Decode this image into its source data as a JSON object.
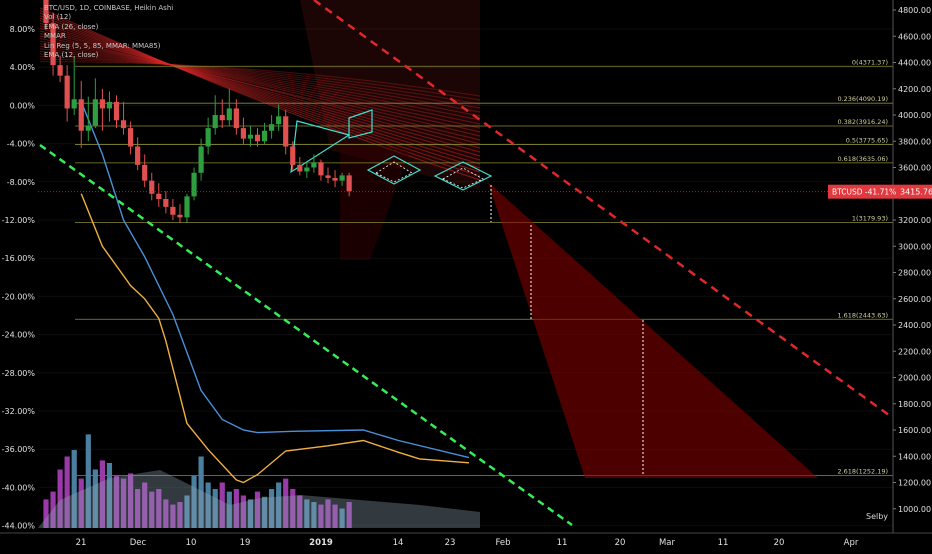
{
  "legend": {
    "title": "BTC/USD, 1D, COINBASE, Heikin Ashi",
    "lines": [
      "Vol (12)",
      "EMA (26, close)",
      "MMAR",
      "Lin Reg (5, 5, 85, MMAR: MMA85)",
      "EMA (12, close)"
    ]
  },
  "footer": {
    "author": "Selby"
  },
  "price_tag": {
    "label": "BTCUSD -41.71%",
    "value": "3415.76",
    "color": "#e0393e"
  },
  "chart_data": {
    "type": "candlestick",
    "right_axis": {
      "ticks": [
        "4800.00",
        "4600.00",
        "4400.00",
        "4200.00",
        "4000.00",
        "3800.00",
        "3600.00",
        "3400.00",
        "3200.00",
        "3000.00",
        "2800.00",
        "2600.00",
        "2400.00",
        "2200.00",
        "2000.00",
        "1800.00",
        "1600.00",
        "1400.00",
        "1200.00",
        "1000.00"
      ],
      "range": [
        900,
        4900
      ]
    },
    "left_axis": {
      "ticks": [
        "8.00%",
        "4.00%",
        "0.00%",
        "-4.00%",
        "-8.00%",
        "-12.00%",
        "-16.00%",
        "-20.00%",
        "-24.00%",
        "-28.00%",
        "-32.00%",
        "-36.00%",
        "-40.00%",
        "-44.00%"
      ]
    },
    "x_axis": {
      "ticks": [
        "21",
        "Dec",
        "10",
        "19",
        "2019",
        "14",
        "23",
        "Feb",
        "11",
        "20",
        "Mar",
        "11",
        "20",
        "Apr"
      ],
      "bold_tick": "2019"
    },
    "fib_levels": [
      {
        "label": "0(4371.37)",
        "price": 4371.37
      },
      {
        "label": "0.236(4090.19)",
        "price": 4090.19
      },
      {
        "label": "0.382(3916.24)",
        "price": 3916.24
      },
      {
        "label": "0.5(3775.65)",
        "price": 3775.65
      },
      {
        "label": "0.618(3635.06)",
        "price": 3635.06
      },
      {
        "label": "1(3179.93)",
        "price": 3179.93
      },
      {
        "label": "1.618(2443.63)",
        "price": 2443.63
      },
      {
        "label": "2.618(1252.19)",
        "price": 1252.19
      }
    ],
    "colors": {
      "up": "#2e9e3f",
      "down": "#e05050",
      "ema26": "#4a90d9",
      "ema12": "#f0b040",
      "green_dashed": "#33ee55",
      "red_dashed": "#e02828",
      "fib": "#8a8a36",
      "pattern": "#40e0d0",
      "vol_up": "#4a7fa0",
      "vol_down": "#9a3aa8"
    },
    "candles_start": [
      {
        "o": 4900,
        "h": 5000,
        "l": 4650,
        "c": 4700
      },
      {
        "o": 4700,
        "h": 4780,
        "l": 4300,
        "c": 4380
      },
      {
        "o": 4380,
        "h": 4450,
        "l": 4250,
        "c": 4300
      },
      {
        "o": 4300,
        "h": 4380,
        "l": 3950,
        "c": 4050
      },
      {
        "o": 4050,
        "h": 4450,
        "l": 4000,
        "c": 4120
      },
      {
        "o": 4120,
        "h": 4260,
        "l": 3750,
        "c": 3880
      },
      {
        "o": 3880,
        "h": 4140,
        "l": 3800,
        "c": 3920
      },
      {
        "o": 3920,
        "h": 4280,
        "l": 3900,
        "c": 4120
      },
      {
        "o": 4120,
        "h": 4200,
        "l": 3880,
        "c": 4050
      },
      {
        "o": 4050,
        "h": 4180,
        "l": 3950,
        "c": 4100
      },
      {
        "o": 4100,
        "h": 4150,
        "l": 3900,
        "c": 3960
      },
      {
        "o": 3960,
        "h": 4100,
        "l": 3850,
        "c": 3900
      },
      {
        "o": 3900,
        "h": 3950,
        "l": 3700,
        "c": 3760
      },
      {
        "o": 3760,
        "h": 3830,
        "l": 3580,
        "c": 3620
      },
      {
        "o": 3620,
        "h": 3700,
        "l": 3450,
        "c": 3500
      },
      {
        "o": 3500,
        "h": 3560,
        "l": 3350,
        "c": 3400
      },
      {
        "o": 3400,
        "h": 3480,
        "l": 3300,
        "c": 3360
      },
      {
        "o": 3360,
        "h": 3420,
        "l": 3250,
        "c": 3300
      },
      {
        "o": 3300,
        "h": 3360,
        "l": 3200,
        "c": 3240
      },
      {
        "o": 3240,
        "h": 3320,
        "l": 3180,
        "c": 3220
      },
      {
        "o": 3220,
        "h": 3400,
        "l": 3180,
        "c": 3380
      },
      {
        "o": 3380,
        "h": 3600,
        "l": 3350,
        "c": 3560
      },
      {
        "o": 3560,
        "h": 3820,
        "l": 3500,
        "c": 3760
      },
      {
        "o": 3760,
        "h": 3980,
        "l": 3700,
        "c": 3900
      },
      {
        "o": 3900,
        "h": 4150,
        "l": 3850,
        "c": 4000
      },
      {
        "o": 4000,
        "h": 4120,
        "l": 3900,
        "c": 3960
      },
      {
        "o": 3960,
        "h": 4200,
        "l": 3920,
        "c": 4050
      },
      {
        "o": 4050,
        "h": 4120,
        "l": 3850,
        "c": 3900
      },
      {
        "o": 3900,
        "h": 3980,
        "l": 3780,
        "c": 3820
      },
      {
        "o": 3820,
        "h": 3920,
        "l": 3760,
        "c": 3850
      },
      {
        "o": 3850,
        "h": 3900,
        "l": 3760,
        "c": 3800
      },
      {
        "o": 3800,
        "h": 3940,
        "l": 3780,
        "c": 3880
      },
      {
        "o": 3880,
        "h": 4000,
        "l": 3820,
        "c": 3930
      },
      {
        "o": 3930,
        "h": 4080,
        "l": 3880,
        "c": 3990
      },
      {
        "o": 3990,
        "h": 4040,
        "l": 3700,
        "c": 3760
      },
      {
        "o": 3760,
        "h": 3800,
        "l": 3580,
        "c": 3620
      },
      {
        "o": 3620,
        "h": 3680,
        "l": 3540,
        "c": 3570
      },
      {
        "o": 3570,
        "h": 3640,
        "l": 3520,
        "c": 3600
      },
      {
        "o": 3600,
        "h": 3700,
        "l": 3560,
        "c": 3640
      },
      {
        "o": 3640,
        "h": 3660,
        "l": 3500,
        "c": 3540
      },
      {
        "o": 3540,
        "h": 3600,
        "l": 3480,
        "c": 3520
      },
      {
        "o": 3520,
        "h": 3580,
        "l": 3450,
        "c": 3500
      },
      {
        "o": 3500,
        "h": 3560,
        "l": 3460,
        "c": 3540
      },
      {
        "o": 3540,
        "h": 3560,
        "l": 3380,
        "c": 3420
      }
    ],
    "ema12": [
      [
        5,
        3400
      ],
      [
        8,
        3000
      ],
      [
        12,
        2700
      ],
      [
        14,
        2600
      ],
      [
        16,
        2450
      ],
      [
        17,
        2280
      ],
      [
        20,
        1650
      ],
      [
        23,
        1450
      ],
      [
        27,
        1220
      ],
      [
        28,
        1200
      ],
      [
        30,
        1260
      ],
      [
        34,
        1440
      ],
      [
        40,
        1480
      ],
      [
        45,
        1520
      ],
      [
        50,
        1430
      ],
      [
        53,
        1380
      ],
      [
        60,
        1350
      ]
    ],
    "ema26": [
      [
        5,
        4100
      ],
      [
        8,
        3700
      ],
      [
        11,
        3200
      ],
      [
        14,
        2920
      ],
      [
        18,
        2480
      ],
      [
        22,
        1900
      ],
      [
        25,
        1680
      ],
      [
        28,
        1600
      ],
      [
        30,
        1580
      ],
      [
        35,
        1590
      ],
      [
        45,
        1600
      ],
      [
        50,
        1520
      ],
      [
        60,
        1390
      ]
    ],
    "volumes": [
      0.22,
      0.28,
      0.45,
      0.55,
      0.6,
      0.38,
      0.72,
      0.45,
      0.52,
      0.5,
      0.4,
      0.38,
      0.42,
      0.3,
      0.35,
      0.28,
      0.3,
      0.22,
      0.18,
      0.2,
      0.25,
      0.4,
      0.55,
      0.35,
      0.3,
      0.35,
      0.28,
      0.3,
      0.25,
      0.22,
      0.28,
      0.24,
      0.3,
      0.35,
      0.38,
      0.3,
      0.25,
      0.22,
      0.2,
      0.18,
      0.22,
      0.18,
      0.15,
      0.2
    ]
  }
}
